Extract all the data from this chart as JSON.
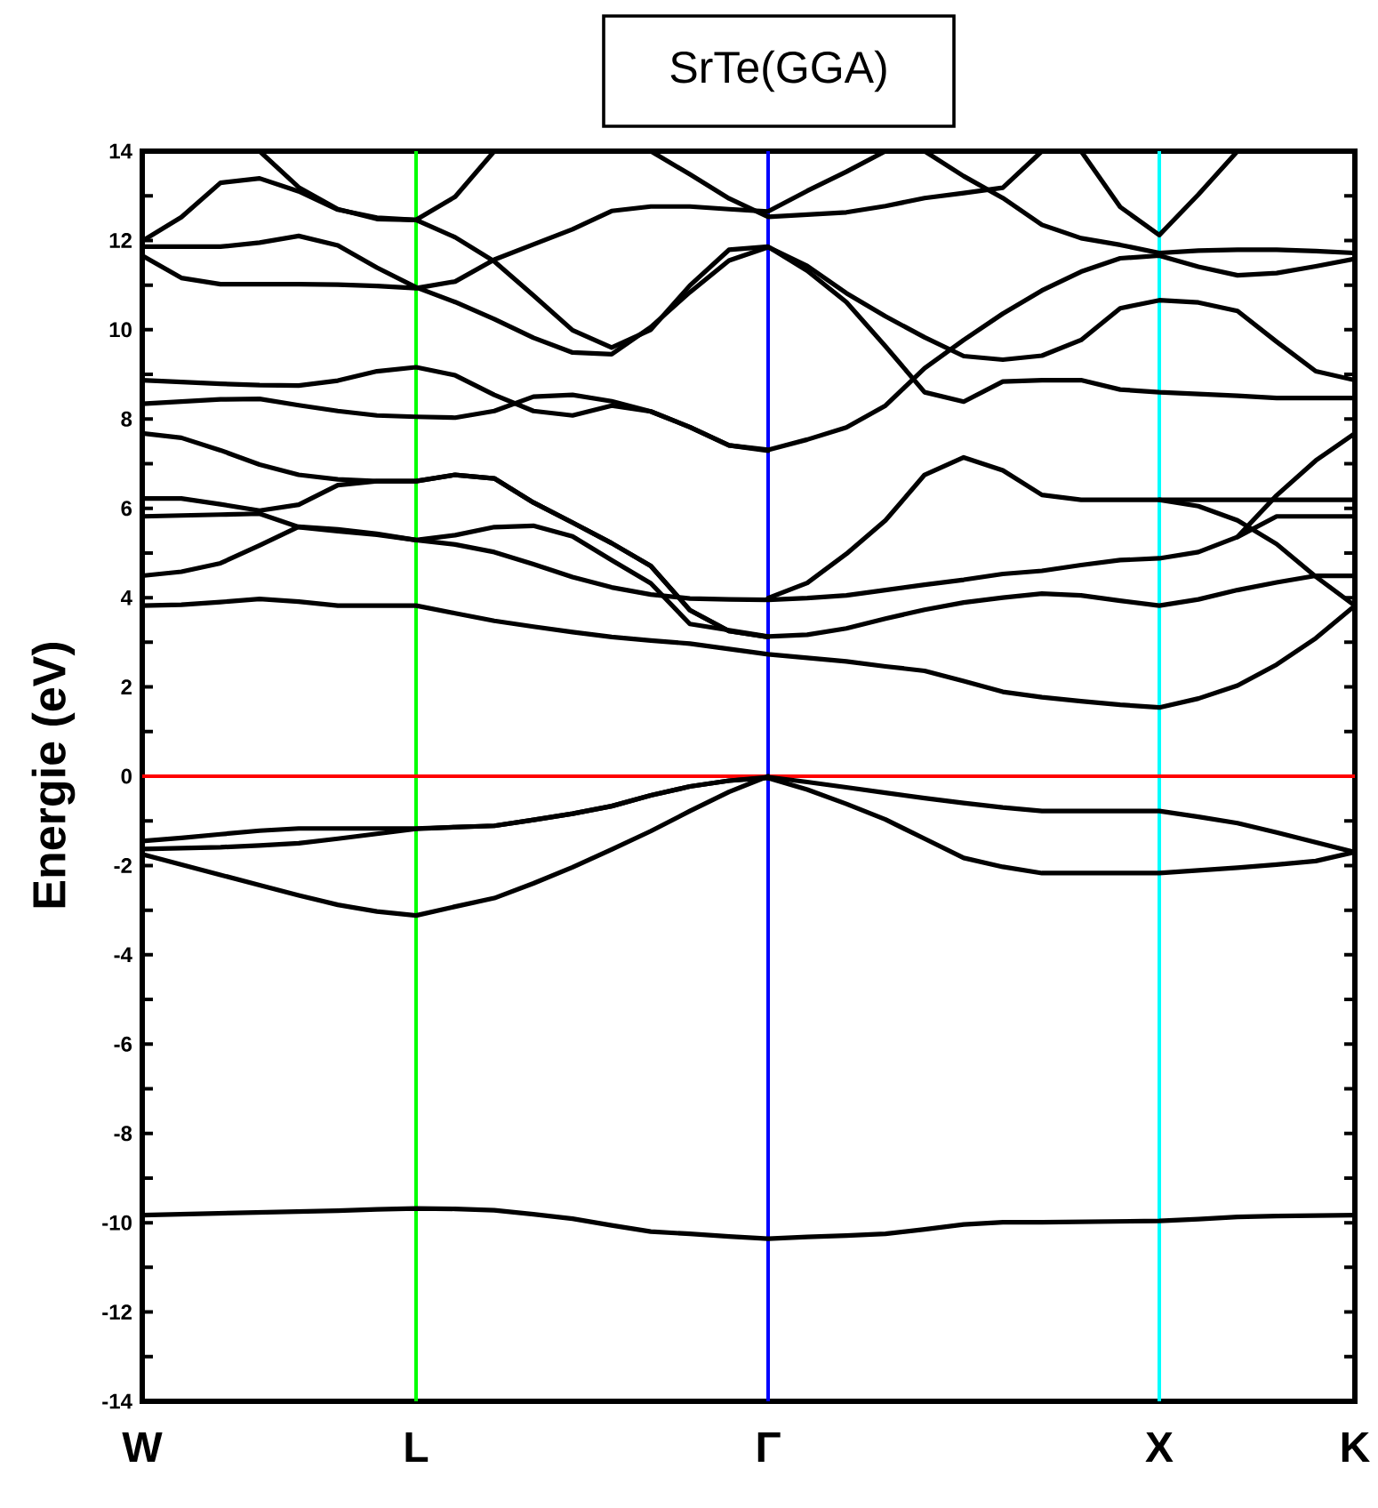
{
  "chart_data": {
    "type": "line",
    "title": "SrTe(GGA)",
    "ylabel": "Energie (eV)",
    "color": "#000000",
    "categories": [
      "W",
      null,
      null,
      null,
      null,
      null,
      null,
      "L",
      null,
      null,
      null,
      null,
      null,
      null,
      null,
      null,
      "Γ",
      null,
      null,
      null,
      null,
      null,
      null,
      null,
      null,
      null,
      "X",
      null,
      null,
      null,
      null,
      "K"
    ],
    "ylim": [
      -14,
      14
    ],
    "yticks": [
      -14,
      {
        "value": -13,
        "label": null
      },
      -12,
      {
        "value": -11,
        "label": null
      },
      -10,
      {
        "value": -9,
        "label": null
      },
      -8,
      {
        "value": -7,
        "label": null
      },
      -6,
      {
        "value": -5,
        "label": null
      },
      -4,
      {
        "value": -3,
        "label": null
      },
      -2,
      {
        "value": -1,
        "label": null
      },
      0,
      {
        "value": 1,
        "label": null
      },
      2,
      {
        "value": 3,
        "label": null
      },
      4,
      {
        "value": 5,
        "label": null
      },
      6,
      {
        "value": 7,
        "label": null
      },
      8,
      {
        "value": 9,
        "label": null
      },
      10,
      {
        "value": 11,
        "label": null
      },
      12,
      {
        "value": 13,
        "label": null
      },
      14
    ],
    "ref_lines": [
      {
        "axis": "x",
        "value": "L",
        "color": "#00ff00"
      },
      {
        "axis": "x",
        "value": "Γ",
        "color": "#0000ff"
      },
      {
        "axis": "x",
        "value": "X",
        "color": "#00ffff"
      },
      {
        "axis": "y",
        "value": 0,
        "color": "#ff0000"
      }
    ],
    "series": [
      {
        "values": [
          -9.83,
          -9.81,
          -9.79,
          -9.77,
          -9.75,
          -9.73,
          -9.7,
          -9.68,
          -9.69,
          -9.72,
          -9.81,
          -9.91,
          -10.06,
          -10.2,
          -10.25,
          -10.31,
          -10.36,
          -10.32,
          -10.29,
          -10.25,
          -10.15,
          -10.04,
          -9.99,
          -9.99,
          -9.98,
          -9.97,
          -9.96,
          -9.92,
          -9.87,
          -9.85,
          -9.84,
          -9.83
        ]
      },
      {
        "values": [
          -1.45,
          -1.38,
          -1.3,
          -1.22,
          -1.17,
          -1.17,
          -1.17,
          -1.17,
          -1.14,
          -1.11,
          -0.98,
          -0.84,
          -0.67,
          -0.43,
          -0.23,
          -0.1,
          -0.02,
          -0.13,
          -0.25,
          -0.37,
          -0.49,
          -0.6,
          -0.7,
          -0.78,
          -0.78,
          -0.78,
          -0.78,
          -0.91,
          -1.05,
          -1.26,
          -1.48,
          -1.7
        ]
      },
      {
        "values": [
          -1.63,
          -1.61,
          -1.59,
          -1.55,
          -1.5,
          -1.4,
          -1.29,
          -1.18,
          -1.14,
          -1.11,
          -0.98,
          -0.84,
          -0.67,
          -0.43,
          -0.23,
          -0.1,
          -0.04,
          -0.3,
          -0.62,
          -0.97,
          -1.4,
          -1.83,
          -2.03,
          -2.17,
          -2.17,
          -2.17,
          -2.17,
          -2.11,
          -2.05,
          -1.98,
          -1.9,
          -1.7
        ]
      },
      {
        "values": [
          -1.75,
          -1.98,
          -2.21,
          -2.44,
          -2.67,
          -2.88,
          -3.03,
          -3.12,
          -2.92,
          -2.73,
          -2.4,
          -2.04,
          -1.64,
          -1.23,
          -0.78,
          -0.35,
          0,
          null,
          null,
          null,
          null,
          null,
          null,
          null,
          null,
          null,
          null,
          null,
          null,
          null,
          null,
          null
        ]
      },
      {
        "values": [
          3.82,
          3.84,
          3.9,
          3.97,
          3.91,
          3.82,
          3.82,
          3.82,
          3.65,
          3.48,
          3.35,
          3.23,
          3.12,
          3.04,
          2.97,
          2.85,
          2.73,
          2.65,
          2.57,
          2.46,
          2.36,
          2.13,
          1.89,
          1.77,
          1.68,
          1.6,
          1.54,
          1.74,
          2.03,
          2.5,
          3.09,
          3.82
        ]
      },
      {
        "values": [
          4.49,
          4.58,
          4.77,
          5.17,
          5.59,
          5.53,
          5.43,
          5.29,
          5.19,
          5.02,
          4.75,
          4.46,
          4.23,
          4.07,
          3.98,
          3.96,
          3.95,
          3.99,
          4.05,
          4.17,
          4.29,
          4.4,
          4.53,
          4.6,
          4.73,
          4.84,
          4.88,
          5.02,
          5.36,
          6.29,
          7.07,
          7.68
        ]
      },
      {
        "values": [
          5.82,
          5.84,
          5.86,
          5.88,
          5.58,
          5.49,
          5.41,
          5.29,
          5.4,
          5.58,
          5.61,
          5.37,
          4.84,
          4.32,
          3.41,
          3.27,
          3.13,
          3.17,
          3.31,
          3.53,
          3.73,
          3.89,
          4.0,
          4.09,
          4.05,
          3.93,
          3.82,
          3.96,
          4.17,
          4.34,
          4.49,
          4.49
        ]
      },
      {
        "values": [
          6.22,
          6.22,
          6.09,
          5.95,
          6.08,
          6.52,
          6.61,
          6.61,
          6.75,
          6.67,
          6.13,
          5.68,
          5.22,
          4.71,
          3.72,
          3.25,
          3.12,
          null,
          null,
          null,
          null,
          null,
          null,
          null,
          null,
          null,
          null,
          null,
          null,
          null,
          null,
          null
        ]
      },
      {
        "values": [
          7.68,
          7.58,
          7.3,
          6.98,
          6.75,
          6.65,
          6.61,
          6.61,
          6.75,
          6.67,
          6.13,
          5.68,
          5.22,
          4.71,
          3.72,
          3.25,
          3.12,
          null,
          null,
          null,
          null,
          null,
          null,
          null,
          null,
          null,
          null,
          null,
          null,
          null,
          null,
          null
        ]
      },
      {
        "values": [
          8.34,
          8.39,
          8.44,
          8.45,
          8.31,
          8.18,
          8.08,
          8.05,
          8.03,
          8.18,
          8.5,
          8.54,
          8.4,
          8.17,
          7.82,
          7.41,
          7.31,
          7.54,
          7.81,
          8.3,
          9.14,
          9.77,
          10.36,
          10.88,
          11.3,
          11.6,
          11.66,
          11.41,
          11.22,
          11.27,
          11.42,
          11.59
        ]
      },
      {
        "values": [
          8.87,
          8.83,
          8.79,
          8.76,
          8.75,
          8.86,
          9.07,
          9.16,
          8.98,
          8.54,
          8.18,
          8.08,
          8.3,
          8.17,
          7.82,
          7.41,
          7.29,
          null,
          null,
          null,
          null,
          null,
          null,
          null,
          null,
          null,
          null,
          null,
          null,
          null,
          null,
          null
        ]
      },
      {
        "values": [
          11.99,
          12.52,
          13.29,
          13.39,
          13.1,
          12.69,
          12.51,
          12.46,
          12.98,
          14,
          null,
          null,
          null,
          null,
          null,
          null,
          null,
          null,
          null,
          null,
          null,
          null,
          null,
          null,
          null,
          null,
          null,
          null,
          null,
          null,
          null,
          null
        ]
      },
      {
        "values": [
          11.66,
          11.16,
          11.02,
          11.02,
          11.02,
          11.01,
          10.98,
          10.93,
          11.08,
          11.57,
          11.91,
          12.25,
          12.66,
          12.76,
          12.76,
          12.7,
          12.65,
          13.11,
          13.54,
          14,
          null,
          null,
          null,
          null,
          null,
          null,
          null,
          null,
          null,
          null,
          null,
          null
        ]
      },
      {
        "values": [
          11.86,
          11.86,
          11.86,
          11.95,
          12.1,
          11.89,
          11.39,
          10.95,
          10.62,
          10.24,
          9.82,
          9.49,
          9.45,
          10.06,
          10.84,
          11.55,
          11.85,
          11.43,
          10.82,
          10.3,
          9.83,
          9.41,
          9.33,
          9.42,
          9.77,
          10.48,
          10.66,
          10.61,
          10.42,
          9.73,
          9.07,
          8.87
        ]
      },
      {
        "values": [
          null,
          null,
          null,
          14,
          13.19,
          12.7,
          12.48,
          12.46,
          12.07,
          11.53,
          10.77,
          9.99,
          9.6,
          10.0,
          10.99,
          11.79,
          11.86,
          11.32,
          10.62,
          9.63,
          8.6,
          8.39,
          8.84,
          8.87,
          8.87,
          8.66,
          8.6,
          8.56,
          8.52,
          8.47,
          8.47,
          8.47
        ]
      },
      {
        "values": [
          null,
          null,
          null,
          null,
          null,
          null,
          null,
          null,
          null,
          null,
          null,
          null,
          null,
          14,
          13.48,
          12.94,
          12.53,
          12.58,
          12.63,
          12.77,
          12.95,
          13.06,
          13.18,
          14,
          null,
          null,
          null,
          null,
          null,
          null,
          null,
          null
        ]
      },
      {
        "values": [
          null,
          null,
          null,
          null,
          null,
          null,
          null,
          null,
          null,
          null,
          null,
          null,
          null,
          null,
          null,
          null,
          null,
          null,
          null,
          null,
          14,
          13.44,
          12.95,
          12.35,
          12.05,
          11.9,
          11.72,
          11.77,
          11.79,
          11.79,
          11.76,
          11.72
        ]
      },
      {
        "values": [
          null,
          null,
          null,
          null,
          null,
          null,
          null,
          null,
          null,
          null,
          null,
          null,
          null,
          null,
          null,
          null,
          null,
          null,
          null,
          null,
          null,
          null,
          null,
          null,
          14,
          12.75,
          12.12,
          13.03,
          14,
          null,
          null,
          null
        ]
      },
      {
        "values": [
          null,
          null,
          null,
          null,
          null,
          null,
          null,
          null,
          null,
          null,
          null,
          null,
          null,
          null,
          null,
          null,
          3.99,
          4.33,
          4.98,
          5.73,
          6.75,
          7.14,
          6.85,
          6.3,
          6.19,
          6.19,
          6.19,
          6.19,
          6.19,
          6.19,
          6.19,
          6.19
        ]
      },
      {
        "values": [
          null,
          null,
          null,
          null,
          null,
          null,
          null,
          null,
          null,
          null,
          null,
          null,
          null,
          null,
          null,
          null,
          null,
          null,
          null,
          null,
          null,
          null,
          null,
          null,
          null,
          null,
          6.19,
          6.05,
          5.73,
          5.2,
          4.47,
          3.82
        ]
      },
      {
        "values": [
          null,
          null,
          null,
          null,
          null,
          null,
          null,
          null,
          null,
          null,
          null,
          null,
          null,
          null,
          null,
          null,
          null,
          null,
          null,
          null,
          null,
          null,
          null,
          null,
          null,
          null,
          null,
          null,
          5.36,
          5.82,
          5.82,
          5.82
        ]
      }
    ]
  }
}
